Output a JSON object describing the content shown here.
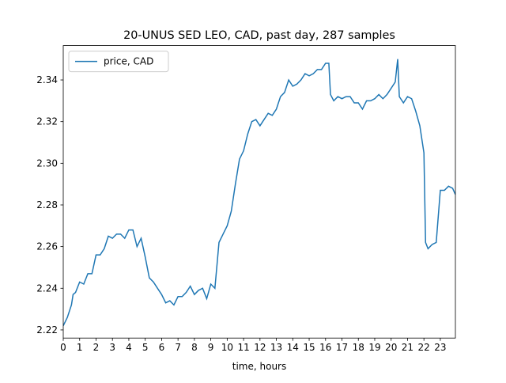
{
  "chart_data": {
    "type": "line",
    "title": "20-UNUS SED LEO, CAD, past day, 287 samples",
    "x_label": "time, hours",
    "legend": "upper left",
    "grid": false,
    "xlim": [
      0,
      23.92
    ],
    "xticks": [
      0,
      1,
      2,
      3,
      4,
      5,
      6,
      7,
      8,
      9,
      10,
      11,
      12,
      13,
      14,
      15,
      16,
      17,
      18,
      19,
      20,
      21,
      22,
      23
    ],
    "ylim": [
      2.2161,
      2.3565
    ],
    "yticks": [
      2.22,
      2.24,
      2.26,
      2.28,
      {
        "value": 2.3,
        "label": "2.30"
      },
      2.32,
      2.34
    ],
    "x": [
      0,
      0.25,
      0.5,
      0.6,
      0.75,
      1,
      1.25,
      1.5,
      1.75,
      2,
      2.25,
      2.5,
      2.75,
      3,
      3.25,
      3.5,
      3.75,
      4,
      4.25,
      4.5,
      4.75,
      5,
      5.25,
      5.5,
      5.75,
      6,
      6.25,
      6.5,
      6.75,
      7,
      7.25,
      7.5,
      7.75,
      8,
      8.25,
      8.5,
      8.75,
      9,
      9.25,
      9.5,
      9.75,
      10,
      10.25,
      10.5,
      10.75,
      11,
      11.25,
      11.5,
      11.75,
      12,
      12.25,
      12.5,
      12.75,
      13,
      13.25,
      13.5,
      13.75,
      14,
      14.25,
      14.5,
      14.75,
      15,
      15.25,
      15.5,
      15.75,
      16,
      16.2,
      16.3,
      16.5,
      16.75,
      17,
      17.25,
      17.5,
      17.75,
      18,
      18.25,
      18.5,
      18.75,
      19,
      19.25,
      19.5,
      19.75,
      20,
      20.25,
      20.4,
      20.5,
      20.75,
      21,
      21.25,
      21.5,
      21.75,
      22,
      22.1,
      22.25,
      22.5,
      22.75,
      23,
      23.25,
      23.5,
      23.75,
      23.92
    ],
    "series": [
      {
        "name": "price, CAD",
        "color": "#1f77b4",
        "values": [
          2.222,
          2.226,
          2.232,
          2.237,
          2.238,
          2.243,
          2.242,
          2.247,
          2.247,
          2.256,
          2.256,
          2.259,
          2.265,
          2.264,
          2.266,
          2.266,
          2.264,
          2.268,
          2.268,
          2.26,
          2.264,
          2.255,
          2.245,
          2.243,
          2.24,
          2.237,
          2.233,
          2.234,
          2.232,
          2.236,
          2.236,
          2.238,
          2.241,
          2.237,
          2.239,
          2.24,
          2.235,
          2.242,
          2.24,
          2.262,
          2.266,
          2.27,
          2.277,
          2.29,
          2.302,
          2.306,
          2.314,
          2.32,
          2.321,
          2.318,
          2.321,
          2.324,
          2.323,
          2.326,
          2.332,
          2.334,
          2.34,
          2.337,
          2.338,
          2.34,
          2.343,
          2.342,
          2.343,
          2.345,
          2.345,
          2.348,
          2.348,
          2.333,
          2.33,
          2.332,
          2.331,
          2.332,
          2.332,
          2.329,
          2.329,
          2.326,
          2.33,
          2.33,
          2.331,
          2.333,
          2.331,
          2.333,
          2.336,
          2.339,
          2.35,
          2.332,
          2.329,
          2.332,
          2.331,
          2.325,
          2.318,
          2.305,
          2.262,
          2.259,
          2.261,
          2.262,
          2.287,
          2.287,
          2.289,
          2.288,
          2.285
        ]
      }
    ]
  }
}
